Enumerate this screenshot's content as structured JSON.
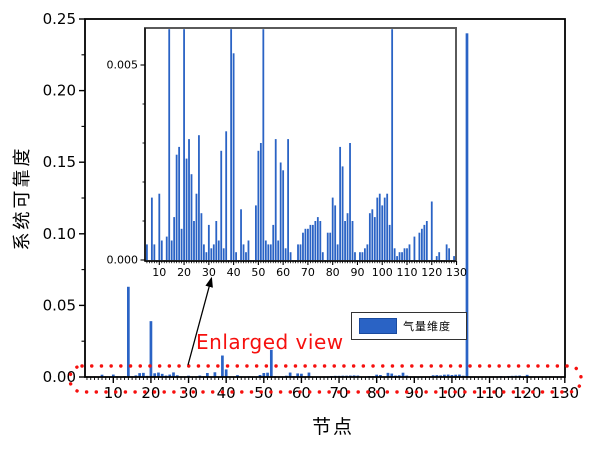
{
  "colors": {
    "bar_blue": "#2A63C5",
    "accent_red": "#F6100E",
    "axis_black": "#000000",
    "inset_frame_gray": "#5A5A5A",
    "background": "#FFFFFF"
  },
  "legend": {
    "label": "气量维度"
  },
  "annotation": {
    "enlarged_label": "Enlarged view"
  },
  "chart_data": {
    "type": "bar",
    "title": "",
    "xlabel": "节点",
    "ylabel": "系统可靠度",
    "legend_entries": [
      "气量维度"
    ],
    "series_name": "气量维度",
    "nodes_note": "x values are node indices 1..130 (implicit by array position)",
    "values": [
      0,
      0,
      0,
      0,
      0.0004,
      0,
      0.0016,
      0.0004,
      0,
      0.0017,
      0.0005,
      0,
      0.0006,
      0.063,
      0.0005,
      0.0011,
      0.0027,
      0.0029,
      0.0008,
      0.039,
      0.0026,
      0.0031,
      0.0022,
      0.001,
      0.0017,
      0.0032,
      0.0012,
      0.0004,
      0.0002,
      0.0009,
      0.0003,
      0.0004,
      0.001,
      0.0005,
      0.0028,
      0.0003,
      0.0033,
      0,
      0.015,
      0.0053,
      0.0002,
      0,
      0.0013,
      0.0004,
      0.0002,
      0.0005,
      0,
      0,
      0.0014,
      0.0028,
      0.003,
      0.019,
      0.0005,
      0.0004,
      0.0004,
      0.0009,
      0.0031,
      0.0005,
      0.0025,
      0.0023,
      0.0003,
      0.0031,
      0.0002,
      0,
      0,
      0.0004,
      0.0004,
      0.0007,
      0.0008,
      0.0008,
      0.0009,
      0.0009,
      0.001,
      0.0011,
      0.001,
      0.0002,
      0,
      0.0007,
      0.0007,
      0.0016,
      0.0014,
      0.0004,
      0.0029,
      0.0024,
      0.001,
      0.0012,
      0.003,
      0.001,
      0.0002,
      0,
      0.0002,
      0.0002,
      0.0003,
      0.0004,
      0.0012,
      0.0013,
      0.0011,
      0.0016,
      0.0017,
      0.0014,
      0.0016,
      0.0017,
      0.0009,
      0.24,
      0.0003,
      0.0001,
      0.0002,
      0.0002,
      0.0003,
      0.0003,
      0.0004,
      0,
      0.0006,
      0,
      0.0007,
      0.0008,
      0.0009,
      0.001,
      0,
      0.0015,
      0,
      0.0001,
      0.0002,
      0,
      0,
      0.0004,
      0.0003,
      0,
      0.0001,
      0
    ],
    "main_axis": {
      "xlim": [
        2.5,
        130
      ],
      "ylim": [
        0,
        0.25
      ],
      "xticks": [
        [
          10,
          "10"
        ],
        [
          20,
          "20"
        ],
        [
          30,
          "30"
        ],
        [
          40,
          "40"
        ],
        [
          50,
          "50"
        ],
        [
          60,
          "60"
        ],
        [
          70,
          "70"
        ],
        [
          80,
          "80"
        ],
        [
          90,
          "90"
        ],
        [
          100,
          "100"
        ],
        [
          110,
          "110"
        ],
        [
          120,
          "120"
        ],
        [
          130,
          "130"
        ]
      ],
      "yticks": [
        [
          0,
          "0.00"
        ],
        [
          0.05,
          "0.05"
        ],
        [
          0.1,
          "0.10"
        ],
        [
          0.15,
          "0.15"
        ],
        [
          0.2,
          "0.20"
        ],
        [
          0.25,
          "0.25"
        ]
      ],
      "y_minor_step": 0.025,
      "x_minor_step": 1,
      "grid": false
    },
    "inset_axis": {
      "xlim": [
        4.2,
        129.8
      ],
      "ylim": [
        0,
        0.006
      ],
      "clipped_above": 0.006,
      "xticks": [
        [
          10,
          "10"
        ],
        [
          20,
          "20"
        ],
        [
          30,
          "30"
        ],
        [
          40,
          "40"
        ],
        [
          50,
          "50"
        ],
        [
          60,
          "60"
        ],
        [
          70,
          "70"
        ],
        [
          80,
          "80"
        ],
        [
          90,
          "90"
        ],
        [
          100,
          "100"
        ],
        [
          110,
          "110"
        ],
        [
          120,
          "120"
        ],
        [
          130,
          "130"
        ]
      ],
      "yticks": [
        [
          0,
          "0.000"
        ],
        [
          0.005,
          "0.005"
        ]
      ],
      "y_minor_step": 0.001,
      "x_minor_step": 1,
      "grid": false
    },
    "highlight_box_region": "y between 0 and ~0.007 across all nodes (red dotted outline)"
  }
}
